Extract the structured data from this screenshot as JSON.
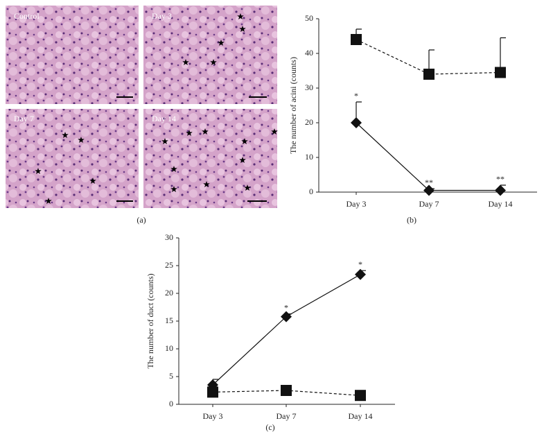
{
  "figure_a": {
    "images": [
      "Control",
      "Day 3",
      "Day 7",
      "Day 14"
    ],
    "caption": "(a)"
  },
  "chart_data": [
    {
      "type": "line",
      "caption": "(b)",
      "y_label": "The number of acini (counts)",
      "categories": [
        "Day 3",
        "Day 7",
        "Day 14"
      ],
      "ylim": [
        0,
        50
      ],
      "yticks": [
        0,
        10,
        20,
        30,
        40,
        50
      ],
      "series": [
        {
          "marker": "square",
          "line_style": "dashed",
          "color": "#111111",
          "values": [
            44,
            34,
            34.5
          ],
          "errors": [
            3,
            7,
            10
          ]
        },
        {
          "marker": "diamond",
          "line_style": "solid",
          "color": "#111111",
          "values": [
            20,
            0.5,
            0.5
          ],
          "errors": [
            6,
            0.5,
            1.5
          ]
        }
      ],
      "annotations": [
        {
          "text": "*",
          "x": "Day 3"
        },
        {
          "text": "**",
          "x": "Day 7"
        },
        {
          "text": "**",
          "x": "Day 14"
        }
      ]
    },
    {
      "type": "line",
      "caption": "(c)",
      "y_label": "The number of duct (counts)",
      "categories": [
        "Day 3",
        "Day 7",
        "Day 14"
      ],
      "ylim": [
        0,
        30
      ],
      "yticks": [
        0,
        5,
        10,
        15,
        20,
        25,
        30
      ],
      "series": [
        {
          "marker": "diamond",
          "line_style": "solid",
          "color": "#111111",
          "values": [
            3.5,
            15.8,
            23.4
          ],
          "errors": [
            1,
            0.5,
            0.7
          ]
        },
        {
          "marker": "square",
          "line_style": "dashed",
          "color": "#111111",
          "values": [
            2.2,
            2.5,
            1.6
          ],
          "errors": [
            0.3,
            0.3,
            0.3
          ]
        }
      ],
      "annotations": [
        {
          "text": "*",
          "x": "Day 7"
        },
        {
          "text": "*",
          "x": "Day 14"
        }
      ]
    }
  ]
}
